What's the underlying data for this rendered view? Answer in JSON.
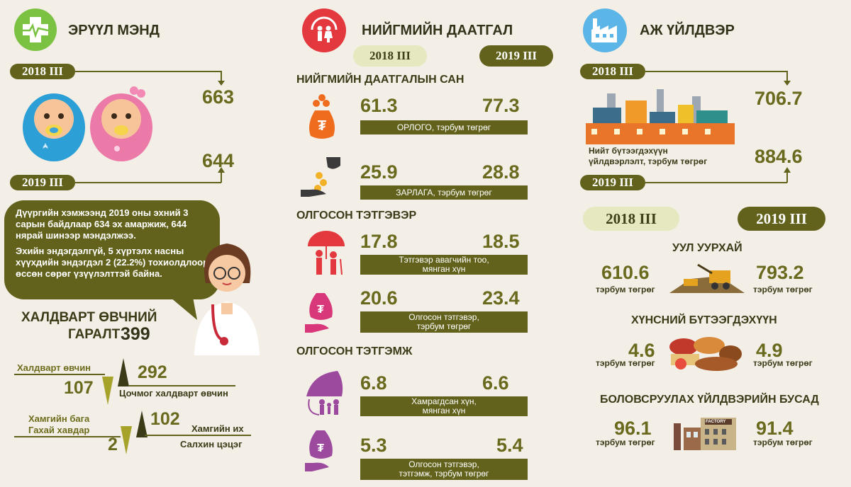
{
  "health": {
    "title": "ЭРҮҮЛ МЭНД",
    "label_2018": "2018 III",
    "label_2019": "2019 III",
    "value_2018": "663",
    "value_2019": "644",
    "note_p1": "Дүүргийн хэмжээнд 2019 оны эхний 3 сарын байдлаар 634 эх амаржиж, 644 нярай шинээр мэндэлжээ.",
    "note_p2": "Эхийн эндэгдэлгүй, 5 хүртэлх насны хүүхдийн эндэгдэл 2 (22.2%) тохиолдлоор өссөн сөрөг үзүүлэлттэй байна.",
    "infect_title_1": "ХАЛДВАРТ ӨВЧНИЙ",
    "infect_title_2": "ГАРАЛТ",
    "infect_total": "399",
    "row1_low_label": "Халдварт өвчин",
    "row1_low_value": "107",
    "row1_high_value": "292",
    "row1_high_label": "Цочмог халдварт өвчин",
    "row2_low_label_1": "Хамгийн бага",
    "row2_low_label_2": "Гахай хавдар",
    "row2_low_value": "2",
    "row2_high_value": "102",
    "row2_high_label_1": "Хамгийн их",
    "row2_high_label_2": "Салхин цэцэг"
  },
  "social": {
    "title": "НИЙГМИЙН ДААТГАЛ",
    "year_2018": "2018 III",
    "year_2019": "2019 III",
    "fund_title": "НИЙГМИЙН ДААТГАЛЫН САН",
    "income_2018": "61.3",
    "income_2019": "77.3",
    "income_label": "ОРЛОГО, тэрбум төгрөг",
    "expense_2018": "25.9",
    "expense_2019": "28.8",
    "expense_label": "ЗАРЛАГА, тэрбум төгрөг",
    "pension_title": "ОЛГОСОН ТЭТГЭВЭР",
    "pens_count_2018": "17.8",
    "pens_count_2019": "18.5",
    "pens_count_label_1": "Тэтгэвэр авагчийн тоо,",
    "pens_count_label_2": "мянган хүн",
    "pens_amt_2018": "20.6",
    "pens_amt_2019": "23.4",
    "pens_amt_label_1": "Олгосон тэтгэвэр,",
    "pens_amt_label_2": "тэрбум төгрөг",
    "benefit_title": "ОЛГОСОН ТЭТГЭМЖ",
    "ben_count_2018": "6.8",
    "ben_count_2019": "6.6",
    "ben_count_label_1": "Хамрагдсан хүн,",
    "ben_count_label_2": "мянган хүн",
    "ben_amt_2018": "5.3",
    "ben_amt_2019": "5.4",
    "ben_amt_label_1": "Олгосон тэтгэвэр,",
    "ben_amt_label_2": "тэтгэмж, тэрбум төгрөг"
  },
  "industry": {
    "title": "АЖ ҮЙЛДВЭР",
    "label_2018": "2018 III",
    "label_2019": "2019 III",
    "value_2018": "706.7",
    "value_2019": "884.6",
    "output_label_1": "Нийт бүтээгдэхүүн",
    "output_label_2": "үйлдвэрлэлт, тэрбум төгрөг",
    "year_2018": "2018 III",
    "year_2019": "2019 III",
    "factory_sign": "FACTORY",
    "mining_title": "УУЛ УУРХАЙ",
    "mining_2018": "610.6",
    "mining_2019": "793.2",
    "food_title": "ХҮНСНИЙ БҮТЭЭГДЭХҮҮН",
    "food_2018": "4.6",
    "food_2019": "4.9",
    "manuf_title": "БОЛОВСРУУЛАХ ҮЙЛДВЭРИЙН БУСАД",
    "manuf_2018": "96.1",
    "manuf_2019": "91.4",
    "unit": "тэрбум төгрөг"
  },
  "colors": {
    "olive": "#62621c",
    "light_pill": "#e6e8c0",
    "green_icon": "#7bc142",
    "red_icon": "#e2383e",
    "blue_icon": "#5bb5e6",
    "pink": "#d8377a",
    "orange": "#ef6c1e",
    "purple": "#9b4a9e",
    "bg": "#f3efe7"
  }
}
